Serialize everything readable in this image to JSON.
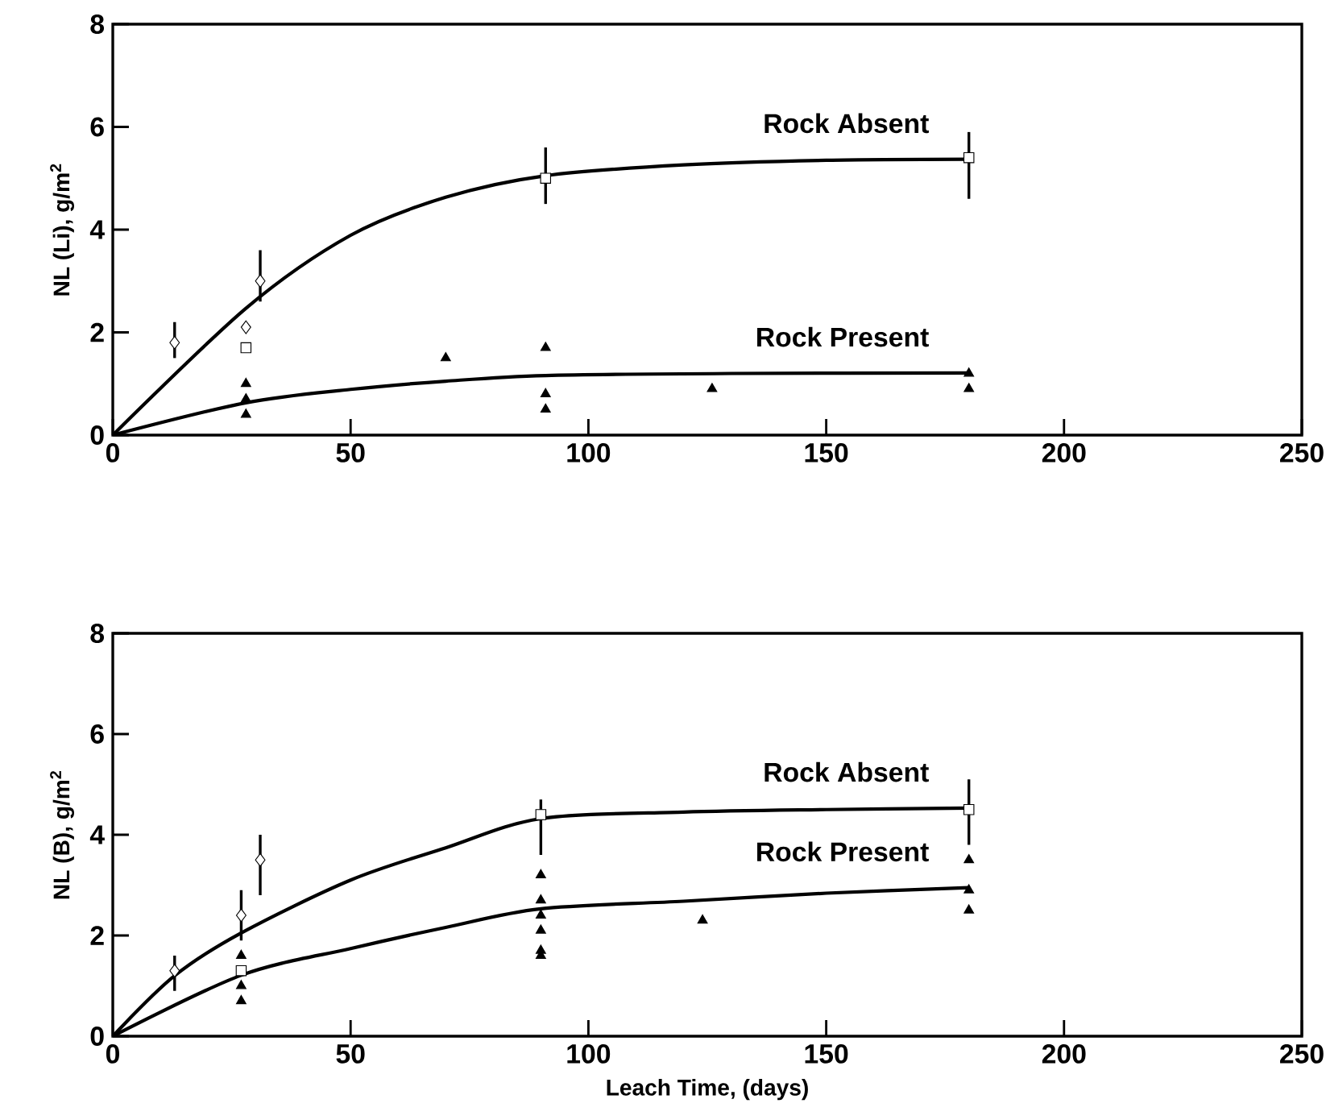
{
  "chart_data": [
    {
      "type": "scatter",
      "ylabel": "NL (Li), g/m$^{2}$",
      "xlim": [
        0,
        250
      ],
      "ylim": [
        0,
        8
      ],
      "xticks": [
        0,
        50,
        100,
        150,
        200,
        250
      ],
      "yticks": [
        0,
        2,
        4,
        6,
        8
      ],
      "grid": false,
      "legend": false,
      "series": [
        {
          "type": "line",
          "name": "Rock Absent",
          "color": "#000000",
          "marker": "none",
          "x": [
            0,
            28,
            50,
            70,
            91,
            120,
            150,
            180
          ],
          "values": [
            0,
            2.47,
            3.89,
            4.63,
            5.05,
            5.26,
            5.35,
            5.37
          ]
        },
        {
          "type": "line",
          "name": "Rock Present",
          "color": "#000000",
          "marker": "none",
          "x": [
            0,
            28,
            50,
            70,
            91,
            130,
            180
          ],
          "values": [
            0,
            0.63,
            0.89,
            1.05,
            1.16,
            1.2,
            1.21
          ]
        },
        {
          "type": "scatter",
          "color": "#000000",
          "marker": "diamond",
          "x": [
            13,
            28,
            31
          ],
          "values": [
            1.8,
            2.1,
            3.0
          ],
          "errors": [
            [
              1.5,
              2.2
            ],
            null,
            [
              2.6,
              3.6
            ]
          ]
        },
        {
          "type": "scatter",
          "color": "#000000",
          "marker": "square",
          "x": [
            28,
            91,
            180
          ],
          "values": [
            1.7,
            5.0,
            5.4
          ],
          "errors": [
            null,
            [
              4.5,
              5.6
            ],
            [
              4.6,
              5.9
            ]
          ]
        },
        {
          "type": "scatter",
          "color": "#000000",
          "marker": "triangle",
          "x": [
            28,
            28,
            28,
            70,
            91,
            91,
            91,
            126,
            180,
            180
          ],
          "values": [
            1.0,
            0.7,
            0.4,
            1.5,
            1.7,
            0.8,
            0.5,
            0.9,
            1.2,
            0.9
          ]
        }
      ]
    },
    {
      "type": "scatter",
      "ylabel": "NL (B), g/m$^{2}$",
      "xlabel": "Leach Time,  (days)",
      "xlim": [
        0,
        250
      ],
      "ylim": [
        0,
        8
      ],
      "xticks": [
        0,
        50,
        100,
        150,
        200,
        250
      ],
      "yticks": [
        0,
        2,
        4,
        6,
        8
      ],
      "grid": false,
      "legend": false,
      "series": [
        {
          "type": "line",
          "name": "Rock Absent",
          "color": "#000000",
          "marker": "none",
          "x": [
            0,
            13,
            27,
            50,
            70,
            90,
            120,
            150,
            180
          ],
          "values": [
            0,
            1.2,
            2.05,
            3.1,
            3.74,
            4.32,
            4.45,
            4.5,
            4.53
          ]
        },
        {
          "type": "line",
          "name": "Rock Present",
          "color": "#000000",
          "marker": "none",
          "x": [
            0,
            27,
            50,
            70,
            90,
            120,
            150,
            180
          ],
          "values": [
            0,
            1.21,
            1.74,
            2.16,
            2.53,
            2.68,
            2.84,
            2.95
          ]
        },
        {
          "type": "scatter",
          "color": "#000000",
          "marker": "diamond",
          "x": [
            13,
            27,
            31
          ],
          "values": [
            1.3,
            2.4,
            3.5
          ],
          "errors": [
            [
              0.9,
              1.6
            ],
            [
              1.9,
              2.9
            ],
            [
              2.8,
              4.0
            ]
          ]
        },
        {
          "type": "scatter",
          "color": "#000000",
          "marker": "square",
          "x": [
            27,
            90,
            180
          ],
          "values": [
            1.3,
            4.4,
            4.5
          ],
          "errors": [
            null,
            [
              3.6,
              4.7
            ],
            [
              3.8,
              5.1
            ]
          ]
        },
        {
          "type": "scatter",
          "color": "#000000",
          "marker": "triangle",
          "x": [
            27,
            27,
            27,
            90,
            90,
            90,
            90,
            90,
            90,
            124,
            180,
            180,
            180
          ],
          "values": [
            1.6,
            1.0,
            0.7,
            3.2,
            2.7,
            2.4,
            2.1,
            1.7,
            1.6,
            2.3,
            3.5,
            2.9,
            2.5
          ]
        }
      ]
    }
  ]
}
